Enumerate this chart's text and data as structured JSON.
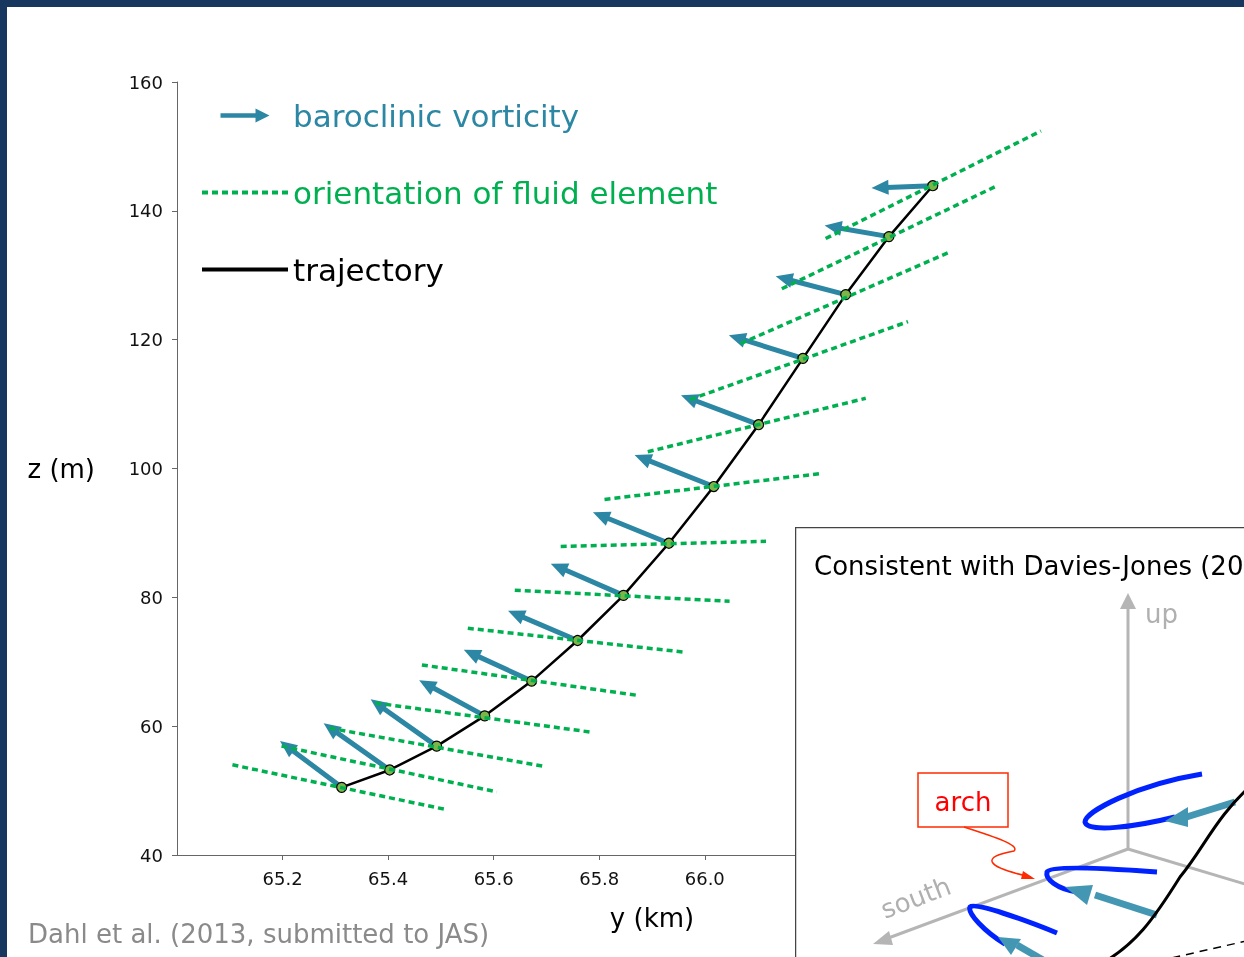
{
  "chart_data": {
    "type": "line",
    "xlabel": "y (km)",
    "ylabel": "z (m)",
    "xlim": [
      65.0,
      66.8
    ],
    "ylim": [
      40,
      160
    ],
    "xticks": [
      65.2,
      65.4,
      65.6,
      65.8,
      {
        "value": 66.0,
        "label": "66.0"
      }
    ],
    "yticks": [
      40,
      60,
      80,
      100,
      120,
      140,
      160
    ],
    "grid": false,
    "legend": "top left",
    "series": [
      {
        "name": "baroclinic vorticity",
        "color": "#2b87a3",
        "marker": "triangle",
        "line_style": "solid",
        "x": [
          65.312,
          65.208,
          null,
          65.403,
          65.291,
          null,
          65.492,
          65.38,
          null,
          65.583,
          65.473,
          null,
          65.672,
          65.558,
          null,
          65.759,
          65.642,
          null,
          65.846,
          65.723,
          null,
          65.932,
          65.803,
          null,
          66.017,
          65.882,
          null,
          66.102,
          65.97,
          null,
          66.186,
          66.061,
          null,
          66.267,
          66.15,
          null,
          66.349,
          66.243,
          null,
          66.432,
          66.332
        ],
        "values": [
          50.5,
          56.9,
          null,
          53.2,
          59.7,
          null,
          56.9,
          63.4,
          null,
          61.6,
          66.5,
          null,
          67.0,
          71.3,
          null,
          73.3,
          77.4,
          null,
          80.3,
          84.7,
          null,
          88.4,
          92.7,
          null,
          97.2,
          101.6,
          null,
          106.8,
          110.9,
          null,
          117.1,
          120.3,
          null,
          127.0,
          129.5,
          null,
          136.0,
          137.5,
          null,
          143.9,
          143.6
        ]
      },
      {
        "name": "orientation of fluid element",
        "color": "#00b050",
        "marker": "none",
        "line_style": "dashed",
        "x": [
          65.105,
          65.513,
          null,
          65.198,
          65.606,
          null,
          65.289,
          65.693,
          null,
          65.376,
          65.782,
          null,
          65.464,
          65.871,
          null,
          65.551,
          65.96,
          null,
          65.64,
          66.047,
          null,
          65.727,
          66.116,
          null,
          65.81,
          66.218,
          null,
          65.892,
          66.305,
          null,
          65.972,
          66.385,
          null,
          66.068,
          66.461,
          null,
          66.146,
          66.554,
          null,
          66.229,
          66.637
        ],
        "values": [
          54.0,
          47.0,
          null,
          56.9,
          49.8,
          null,
          59.7,
          53.8,
          null,
          63.6,
          59.1,
          null,
          69.5,
          64.8,
          null,
          75.2,
          71.5,
          null,
          81.1,
          79.4,
          null,
          87.9,
          88.7,
          null,
          95.2,
          99.2,
          null,
          102.6,
          110.9,
          null,
          110.7,
          122.8,
          null,
          119.4,
          133.5,
          null,
          127.9,
          143.9,
          null,
          135.7,
          152.4
        ]
      },
      {
        "name": "trajectory",
        "color": "#000000",
        "marker": "circle",
        "line_style": "solid",
        "x": [
          65.312,
          65.403,
          65.492,
          65.583,
          65.672,
          65.759,
          65.846,
          65.932,
          66.017,
          66.102,
          66.186,
          66.267,
          66.349,
          66.432
        ],
        "values": [
          50.5,
          53.2,
          56.9,
          61.6,
          67.0,
          73.3,
          80.3,
          88.4,
          97.2,
          106.8,
          117.1,
          127.0,
          136.0,
          143.9
        ]
      }
    ],
    "annotations": [
      "Dahl et al. (2013, submitted to JAS)",
      "Consistent with Davies-Jones (20",
      "up",
      "south",
      "arch"
    ]
  }
}
